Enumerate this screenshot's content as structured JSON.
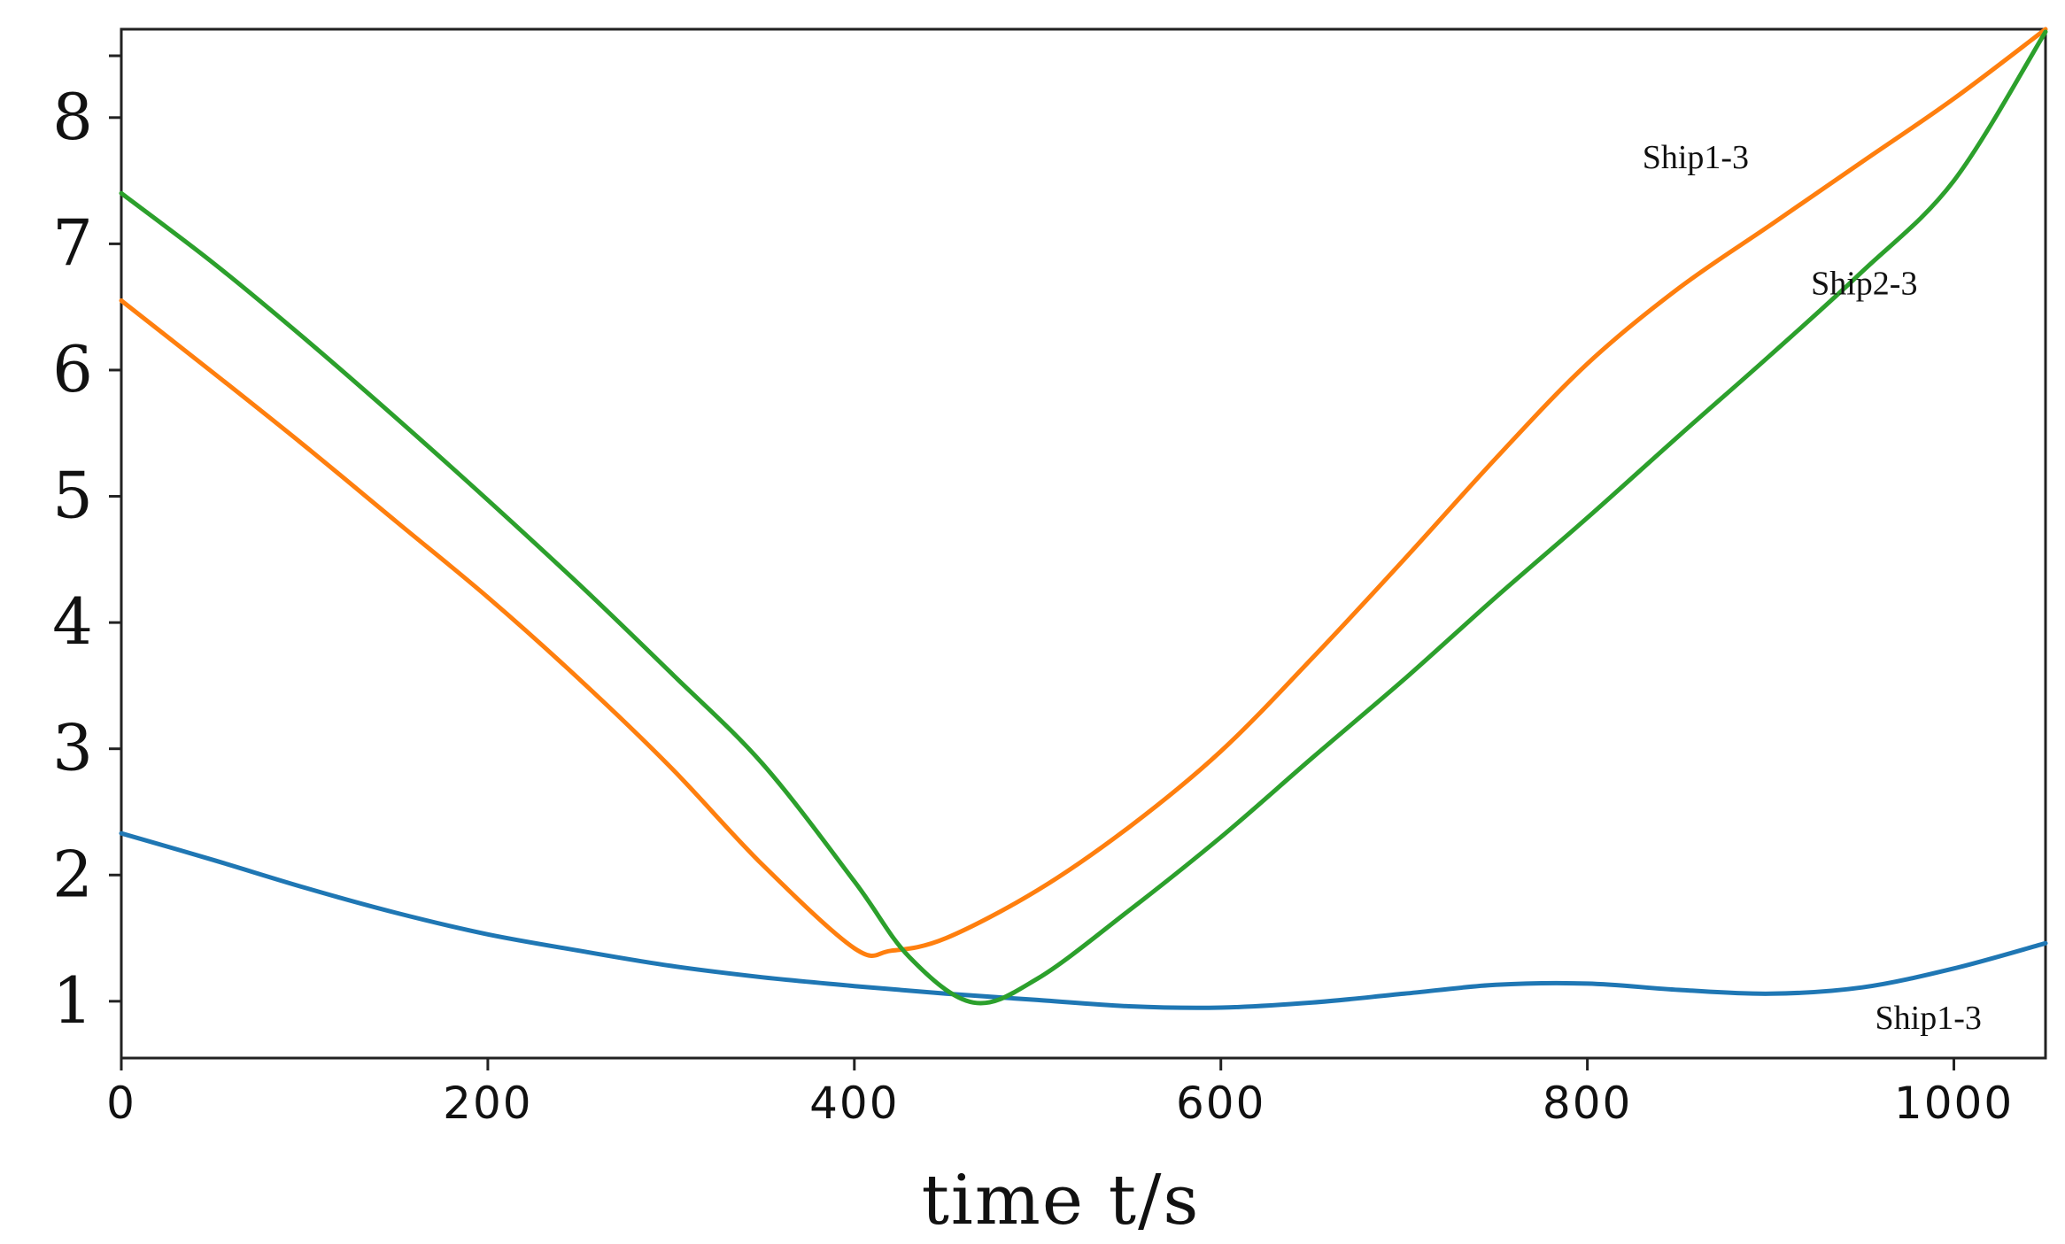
{
  "chart_data": {
    "type": "line",
    "title": "",
    "xlabel": "time t/s",
    "ylabel": "",
    "xlim": [
      0,
      1050
    ],
    "ylim": [
      0.55,
      8.7
    ],
    "xticks": [
      "0",
      "200",
      "400",
      "600",
      "800",
      "1000"
    ],
    "yticks": [
      "1",
      "2",
      "3",
      "4",
      "5",
      "6",
      "7",
      "8"
    ],
    "grid": false,
    "series": [
      {
        "name": "Ship1-3",
        "color": "#1f77b4",
        "x": [
          0,
          50,
          100,
          150,
          200,
          250,
          300,
          350,
          400,
          450,
          500,
          550,
          600,
          650,
          700,
          750,
          800,
          850,
          900,
          950,
          1000,
          1050
        ],
        "y": [
          2.33,
          2.12,
          1.9,
          1.7,
          1.53,
          1.4,
          1.28,
          1.19,
          1.12,
          1.06,
          1.01,
          0.96,
          0.95,
          0.99,
          1.06,
          1.13,
          1.14,
          1.09,
          1.06,
          1.11,
          1.26,
          1.46
        ]
      },
      {
        "name": "Ship1-3",
        "color": "#ff7f0e",
        "x": [
          0,
          50,
          100,
          150,
          200,
          250,
          300,
          350,
          400,
          420,
          450,
          500,
          550,
          600,
          650,
          700,
          750,
          800,
          850,
          900,
          950,
          1000,
          1050
        ],
        "y": [
          6.55,
          5.98,
          5.4,
          4.8,
          4.2,
          3.55,
          2.85,
          2.08,
          1.42,
          1.4,
          1.5,
          1.88,
          2.38,
          2.98,
          3.72,
          4.5,
          5.3,
          6.05,
          6.65,
          7.15,
          7.65,
          8.15,
          8.7
        ]
      },
      {
        "name": "Ship2-3",
        "color": "#2ca02c",
        "x": [
          0,
          50,
          100,
          150,
          200,
          250,
          300,
          350,
          400,
          430,
          465,
          500,
          550,
          600,
          650,
          700,
          750,
          800,
          850,
          900,
          950,
          1000,
          1050
        ],
        "y": [
          7.4,
          6.85,
          6.25,
          5.62,
          4.97,
          4.3,
          3.6,
          2.88,
          1.95,
          1.35,
          0.99,
          1.18,
          1.72,
          2.3,
          2.93,
          3.55,
          4.2,
          4.83,
          5.48,
          6.12,
          6.78,
          7.5,
          8.68
        ]
      }
    ],
    "annotations": [
      {
        "text": "Ship1-3",
        "x": 830,
        "y": 7.6
      },
      {
        "text": "Ship2-3",
        "x": 922,
        "y": 6.6
      },
      {
        "text": "Ship1-3",
        "x": 957,
        "y": 0.78
      }
    ]
  }
}
